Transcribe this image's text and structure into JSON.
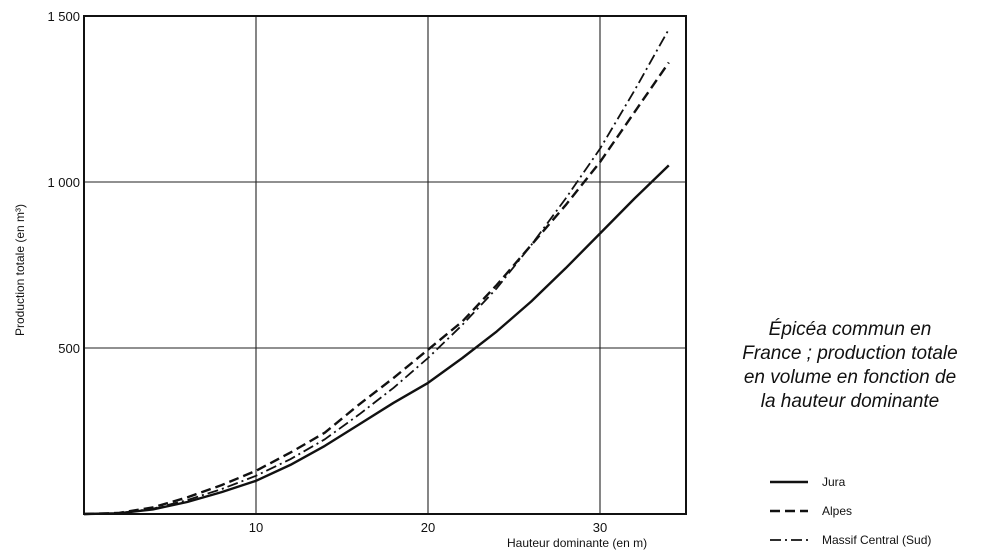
{
  "chart_data": {
    "type": "line",
    "xlabel": "Hauteur dominante (en m)",
    "ylabel": "Production totale (en m³)",
    "xlim": [
      0,
      35
    ],
    "ylim": [
      0,
      1500
    ],
    "x_ticks": [
      {
        "value": 10,
        "label": "10"
      },
      {
        "value": 20,
        "label": "20"
      },
      {
        "value": 30,
        "label": "30"
      }
    ],
    "y_ticks": [
      {
        "value": 500,
        "label": "500"
      },
      {
        "value": 1000,
        "label": "1 000"
      },
      {
        "value": 1500,
        "label": "1 500"
      }
    ],
    "grid": true,
    "legend_position": "bottom-right",
    "series": [
      {
        "name": "Jura",
        "style": "solid",
        "x": [
          0,
          2,
          4,
          6,
          8,
          10,
          12,
          14,
          16,
          18,
          20,
          22,
          24,
          26,
          28,
          30,
          32,
          34
        ],
        "y": [
          0,
          2,
          14,
          36,
          66,
          100,
          148,
          205,
          270,
          335,
          395,
          470,
          550,
          640,
          740,
          845,
          950,
          1050
        ]
      },
      {
        "name": "Alpes",
        "style": "dashed",
        "x": [
          0,
          2,
          4,
          6,
          8,
          10,
          12,
          14,
          16,
          18,
          20,
          22,
          24,
          26,
          28,
          30,
          32,
          34
        ],
        "y": [
          0,
          3,
          20,
          50,
          87,
          130,
          185,
          245,
          330,
          410,
          495,
          580,
          690,
          810,
          930,
          1060,
          1210,
          1360
        ]
      },
      {
        "name": "Massif Central (Sud)",
        "style": "dashdot",
        "x": [
          0,
          2,
          4,
          6,
          8,
          10,
          12,
          14,
          16,
          18,
          20,
          22,
          24,
          26,
          28,
          30,
          32,
          34
        ],
        "y": [
          0,
          2,
          16,
          42,
          75,
          115,
          165,
          225,
          300,
          380,
          470,
          570,
          680,
          810,
          950,
          1100,
          1275,
          1460
        ]
      }
    ]
  },
  "caption": {
    "lines": [
      "Épicéa commun en",
      "France ; production totale",
      "en volume en fonction de",
      "la hauteur dominante"
    ]
  }
}
